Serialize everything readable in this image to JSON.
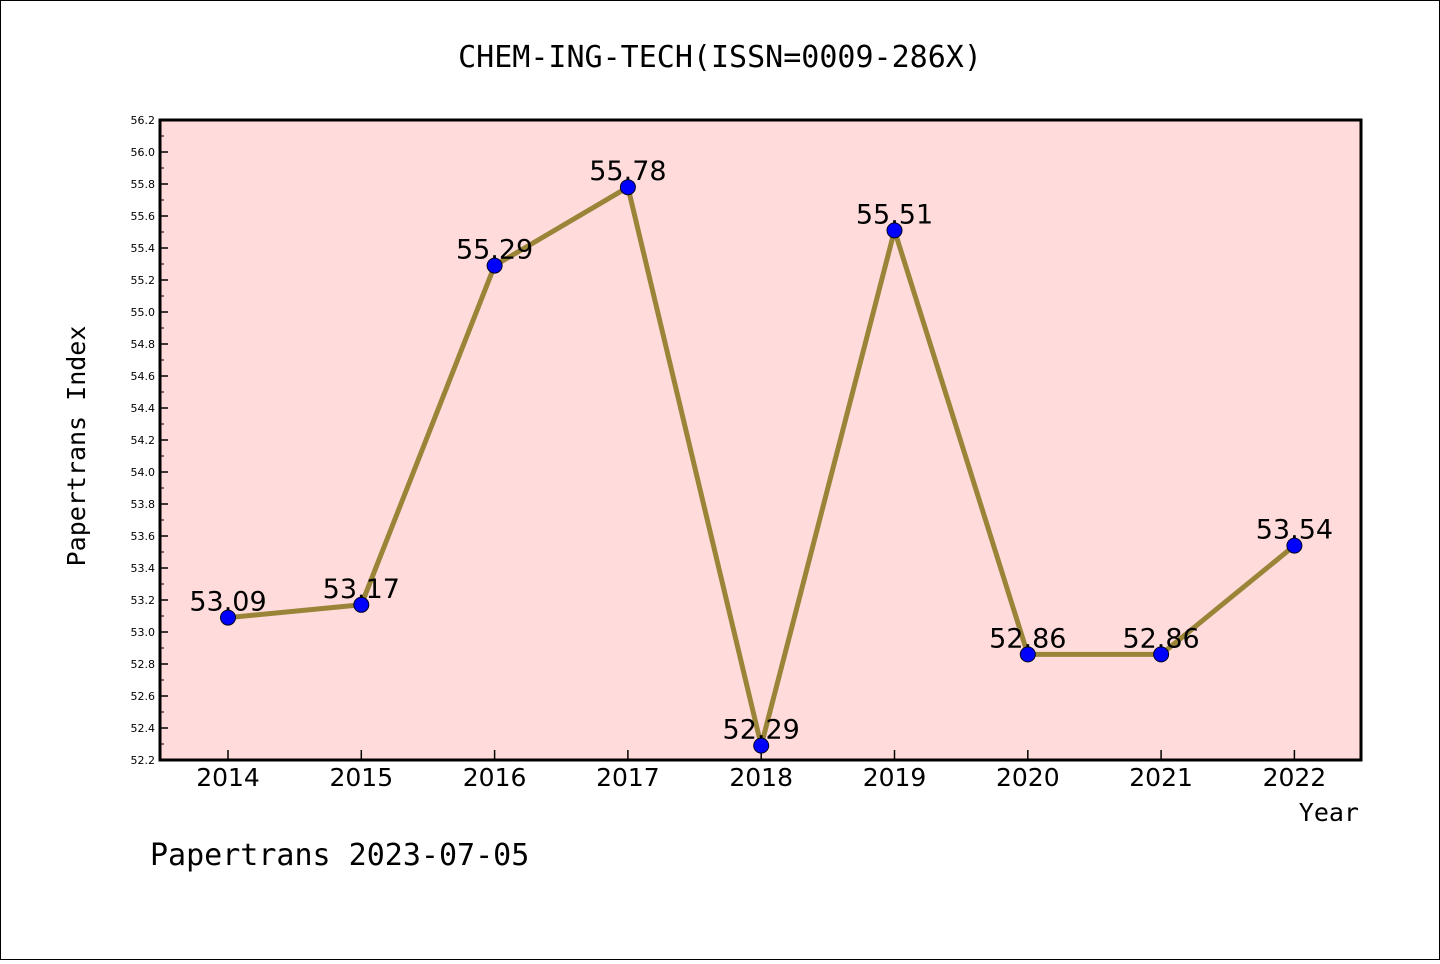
{
  "chart_data": {
    "type": "line",
    "title": "CHEM-ING-TECH(ISSN=0009-286X)",
    "xlabel": "Year",
    "ylabel": "Papertrans Index",
    "x": [
      "2014",
      "2015",
      "2016",
      "2017",
      "2018",
      "2019",
      "2020",
      "2021",
      "2022"
    ],
    "series": [
      {
        "values": [
          53.09,
          53.17,
          55.29,
          55.78,
          52.29,
          55.51,
          52.86,
          52.86,
          53.54
        ],
        "labels": [
          "53.09",
          "53.17",
          "55.29",
          "55.78",
          "52.29",
          "55.51",
          "52.86",
          "52.86",
          "53.54"
        ]
      }
    ],
    "ylim": [
      52.2,
      56.2
    ],
    "yticks": [
      "52.2",
      "52.4",
      "52.6",
      "52.8",
      "53.0",
      "53.2",
      "53.4",
      "53.6",
      "53.8",
      "54.0",
      "54.2",
      "54.4",
      "54.6",
      "54.8",
      "55.0",
      "55.2",
      "55.4",
      "55.6",
      "55.8",
      "56.0",
      "56.2"
    ],
    "grid": false,
    "colors": {
      "plot_background": "#ffdcdb",
      "line": "#9a8438",
      "marker": "#0000ff"
    }
  },
  "footer": {
    "text": "Papertrans 2023-07-05"
  }
}
